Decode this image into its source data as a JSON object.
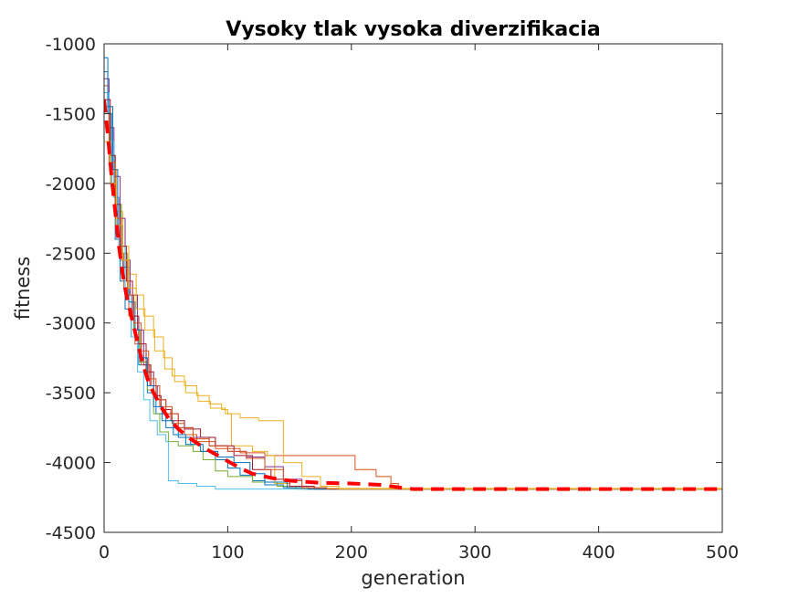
{
  "chart_data": {
    "type": "line",
    "title": "Vysoky tlak vysoka diverzifikacia",
    "xlabel": "generation",
    "ylabel": "fitness",
    "xlim": [
      0,
      500
    ],
    "ylim": [
      -4500,
      -1000
    ],
    "xticks": [
      0,
      100,
      200,
      300,
      400,
      500
    ],
    "yticks": [
      -1000,
      -1500,
      -2000,
      -2500,
      -3000,
      -3500,
      -4000,
      -4500
    ],
    "grid": false,
    "box": true,
    "series": [
      {
        "color": "#0072BD",
        "style": "step",
        "points": [
          [
            0,
            -1200
          ],
          [
            3,
            -1500
          ],
          [
            6,
            -2000
          ],
          [
            9,
            -2400
          ],
          [
            13,
            -2700
          ],
          [
            17,
            -2900
          ],
          [
            22,
            -3100
          ],
          [
            28,
            -3300
          ],
          [
            35,
            -3500
          ],
          [
            42,
            -3650
          ],
          [
            50,
            -3750
          ],
          [
            60,
            -3820
          ],
          [
            70,
            -3870
          ],
          [
            80,
            -3920
          ],
          [
            90,
            -3980
          ],
          [
            100,
            -4040
          ],
          [
            110,
            -4090
          ],
          [
            120,
            -4130
          ],
          [
            130,
            -4160
          ],
          [
            145,
            -4180
          ],
          [
            160,
            -4190
          ],
          [
            500,
            -4190
          ]
        ]
      },
      {
        "color": "#D95319",
        "style": "step",
        "points": [
          [
            0,
            -1300
          ],
          [
            4,
            -1700
          ],
          [
            8,
            -2100
          ],
          [
            12,
            -2500
          ],
          [
            16,
            -2750
          ],
          [
            20,
            -2950
          ],
          [
            25,
            -3150
          ],
          [
            30,
            -3300
          ],
          [
            38,
            -3450
          ],
          [
            45,
            -3600
          ],
          [
            55,
            -3720
          ],
          [
            65,
            -3800
          ],
          [
            75,
            -3850
          ],
          [
            90,
            -3900
          ],
          [
            110,
            -3930
          ],
          [
            130,
            -3950
          ],
          [
            200,
            -3950
          ],
          [
            203,
            -4050
          ],
          [
            220,
            -4100
          ],
          [
            232,
            -4150
          ],
          [
            238,
            -4190
          ],
          [
            500,
            -4190
          ]
        ]
      },
      {
        "color": "#EDB120",
        "style": "step",
        "points": [
          [
            0,
            -1600
          ],
          [
            5,
            -1900
          ],
          [
            10,
            -2200
          ],
          [
            15,
            -2450
          ],
          [
            20,
            -2650
          ],
          [
            26,
            -2800
          ],
          [
            32,
            -2950
          ],
          [
            40,
            -3100
          ],
          [
            48,
            -3250
          ],
          [
            55,
            -3380
          ],
          [
            65,
            -3450
          ],
          [
            75,
            -3520
          ],
          [
            85,
            -3580
          ],
          [
            95,
            -3620
          ],
          [
            100,
            -3650
          ],
          [
            103,
            -3880
          ],
          [
            120,
            -3920
          ],
          [
            132,
            -3950
          ],
          [
            138,
            -4150
          ],
          [
            150,
            -4185
          ],
          [
            500,
            -4190
          ]
        ]
      },
      {
        "color": "#7E2F8E",
        "style": "step",
        "points": [
          [
            0,
            -1250
          ],
          [
            4,
            -1600
          ],
          [
            8,
            -1950
          ],
          [
            13,
            -2250
          ],
          [
            17,
            -2550
          ],
          [
            21,
            -2800
          ],
          [
            27,
            -3050
          ],
          [
            32,
            -3300
          ],
          [
            37,
            -3450
          ],
          [
            43,
            -3550
          ],
          [
            50,
            -3650
          ],
          [
            60,
            -3750
          ],
          [
            72,
            -3820
          ],
          [
            85,
            -3880
          ],
          [
            100,
            -3920
          ],
          [
            115,
            -3960
          ],
          [
            130,
            -4030
          ],
          [
            145,
            -4120
          ],
          [
            160,
            -4180
          ],
          [
            180,
            -4190
          ],
          [
            500,
            -4190
          ]
        ]
      },
      {
        "color": "#77AC30",
        "style": "step",
        "points": [
          [
            0,
            -1450
          ],
          [
            5,
            -1800
          ],
          [
            9,
            -2150
          ],
          [
            14,
            -2500
          ],
          [
            19,
            -2800
          ],
          [
            24,
            -3050
          ],
          [
            29,
            -3280
          ],
          [
            35,
            -3480
          ],
          [
            40,
            -3650
          ],
          [
            45,
            -3780
          ],
          [
            52,
            -3850
          ],
          [
            60,
            -3880
          ],
          [
            72,
            -3920
          ],
          [
            80,
            -3980
          ],
          [
            90,
            -4060
          ],
          [
            100,
            -4100
          ],
          [
            120,
            -4140
          ],
          [
            140,
            -4170
          ],
          [
            155,
            -4190
          ],
          [
            500,
            -4190
          ]
        ]
      },
      {
        "color": "#4DBEEE",
        "style": "step",
        "points": [
          [
            0,
            -1350
          ],
          [
            4,
            -1700
          ],
          [
            8,
            -2100
          ],
          [
            12,
            -2450
          ],
          [
            17,
            -2800
          ],
          [
            22,
            -3100
          ],
          [
            27,
            -3350
          ],
          [
            32,
            -3550
          ],
          [
            37,
            -3700
          ],
          [
            43,
            -3800
          ],
          [
            50,
            -3850
          ],
          [
            52,
            -4130
          ],
          [
            60,
            -4150
          ],
          [
            75,
            -4170
          ],
          [
            90,
            -4190
          ],
          [
            500,
            -4190
          ]
        ]
      },
      {
        "color": "#A2142F",
        "style": "step",
        "points": [
          [
            0,
            -1400
          ],
          [
            5,
            -1800
          ],
          [
            9,
            -2150
          ],
          [
            13,
            -2450
          ],
          [
            18,
            -2700
          ],
          [
            23,
            -2950
          ],
          [
            28,
            -3150
          ],
          [
            34,
            -3350
          ],
          [
            40,
            -3520
          ],
          [
            46,
            -3620
          ],
          [
            54,
            -3700
          ],
          [
            65,
            -3760
          ],
          [
            78,
            -3820
          ],
          [
            90,
            -3880
          ],
          [
            105,
            -3950
          ],
          [
            120,
            -4050
          ],
          [
            135,
            -4120
          ],
          [
            150,
            -4170
          ],
          [
            170,
            -4190
          ],
          [
            500,
            -4190
          ]
        ]
      },
      {
        "color": "#0072BD",
        "style": "step",
        "points": [
          [
            0,
            -1100
          ],
          [
            3,
            -1450
          ],
          [
            7,
            -1900
          ],
          [
            11,
            -2300
          ],
          [
            15,
            -2600
          ],
          [
            20,
            -2850
          ],
          [
            25,
            -3050
          ],
          [
            30,
            -3250
          ],
          [
            35,
            -3450
          ],
          [
            40,
            -3600
          ],
          [
            47,
            -3700
          ],
          [
            56,
            -3800
          ],
          [
            66,
            -3870
          ],
          [
            78,
            -3920
          ],
          [
            92,
            -3960
          ],
          [
            105,
            -4000
          ],
          [
            118,
            -4080
          ],
          [
            130,
            -4140
          ],
          [
            148,
            -4180
          ],
          [
            165,
            -4190
          ],
          [
            500,
            -4190
          ]
        ]
      },
      {
        "color": "#D95319",
        "style": "step",
        "points": [
          [
            0,
            -1500
          ],
          [
            4,
            -1850
          ],
          [
            9,
            -2250
          ],
          [
            14,
            -2550
          ],
          [
            19,
            -2800
          ],
          [
            24,
            -3000
          ],
          [
            30,
            -3200
          ],
          [
            36,
            -3400
          ],
          [
            42,
            -3550
          ],
          [
            50,
            -3650
          ],
          [
            60,
            -3750
          ],
          [
            72,
            -3830
          ],
          [
            85,
            -3880
          ],
          [
            100,
            -3920
          ],
          [
            115,
            -3970
          ],
          [
            130,
            -4050
          ],
          [
            145,
            -4130
          ],
          [
            160,
            -4180
          ],
          [
            180,
            -4190
          ],
          [
            500,
            -4190
          ]
        ]
      },
      {
        "color": "#EDB120",
        "style": "step",
        "points": [
          [
            0,
            -1700
          ],
          [
            5,
            -2000
          ],
          [
            10,
            -2300
          ],
          [
            15,
            -2550
          ],
          [
            20,
            -2750
          ],
          [
            26,
            -2900
          ],
          [
            33,
            -3050
          ],
          [
            41,
            -3200
          ],
          [
            49,
            -3330
          ],
          [
            57,
            -3420
          ],
          [
            66,
            -3500
          ],
          [
            76,
            -3560
          ],
          [
            86,
            -3610
          ],
          [
            98,
            -3650
          ],
          [
            110,
            -3680
          ],
          [
            125,
            -3700
          ],
          [
            140,
            -3700
          ],
          [
            145,
            -4000
          ],
          [
            160,
            -4100
          ],
          [
            175,
            -4170
          ],
          [
            190,
            -4190
          ],
          [
            500,
            -4190
          ]
        ]
      },
      {
        "color": "#FF0000",
        "style": "dashed",
        "mean": true,
        "points": [
          [
            0,
            -1400
          ],
          [
            3,
            -1650
          ],
          [
            6,
            -1950
          ],
          [
            9,
            -2200
          ],
          [
            12,
            -2450
          ],
          [
            15,
            -2650
          ],
          [
            18,
            -2800
          ],
          [
            22,
            -2950
          ],
          [
            26,
            -3100
          ],
          [
            30,
            -3250
          ],
          [
            35,
            -3400
          ],
          [
            40,
            -3500
          ],
          [
            46,
            -3600
          ],
          [
            52,
            -3680
          ],
          [
            60,
            -3760
          ],
          [
            70,
            -3830
          ],
          [
            80,
            -3890
          ],
          [
            90,
            -3940
          ],
          [
            100,
            -3990
          ],
          [
            110,
            -4040
          ],
          [
            120,
            -4080
          ],
          [
            135,
            -4110
          ],
          [
            150,
            -4130
          ],
          [
            175,
            -4145
          ],
          [
            200,
            -4150
          ],
          [
            225,
            -4160
          ],
          [
            240,
            -4180
          ],
          [
            250,
            -4190
          ],
          [
            500,
            -4190
          ]
        ]
      }
    ]
  }
}
